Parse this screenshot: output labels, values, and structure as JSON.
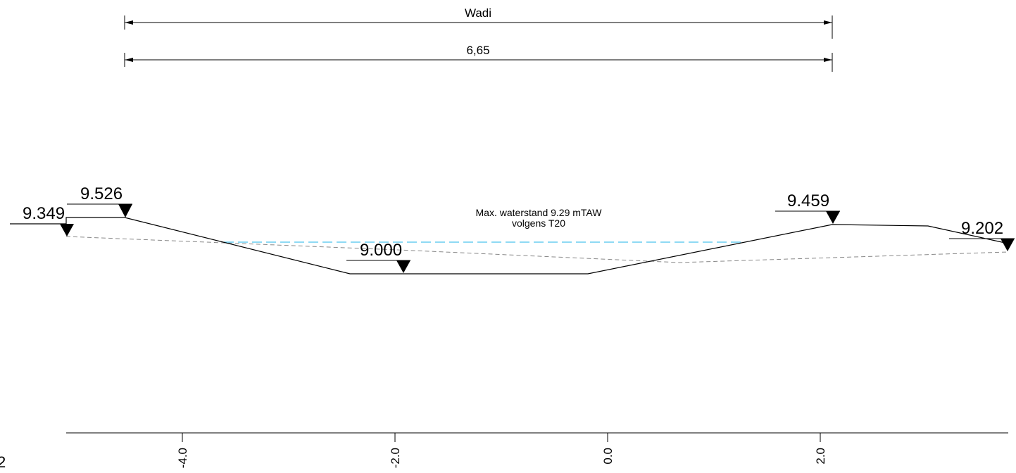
{
  "dimensions": {
    "top_label": "Wadi",
    "width_label": "6,65"
  },
  "annotation": {
    "line1": "Max. waterstand 9.29 mTAW",
    "line2": "volgens T20"
  },
  "levels": {
    "left_top_bank": "9.526",
    "left_existing": "9.349",
    "bottom": "9.000",
    "right_top_bank": "9.459",
    "right_existing": "9.202"
  },
  "axis": {
    "ticks": [
      "-4.0",
      "-2.0",
      "0.0",
      "2.0"
    ],
    "corner_label": "2"
  },
  "colors": {
    "line": "#000000",
    "existing_ground": "#888888",
    "water_level": "#4cc3ee"
  }
}
